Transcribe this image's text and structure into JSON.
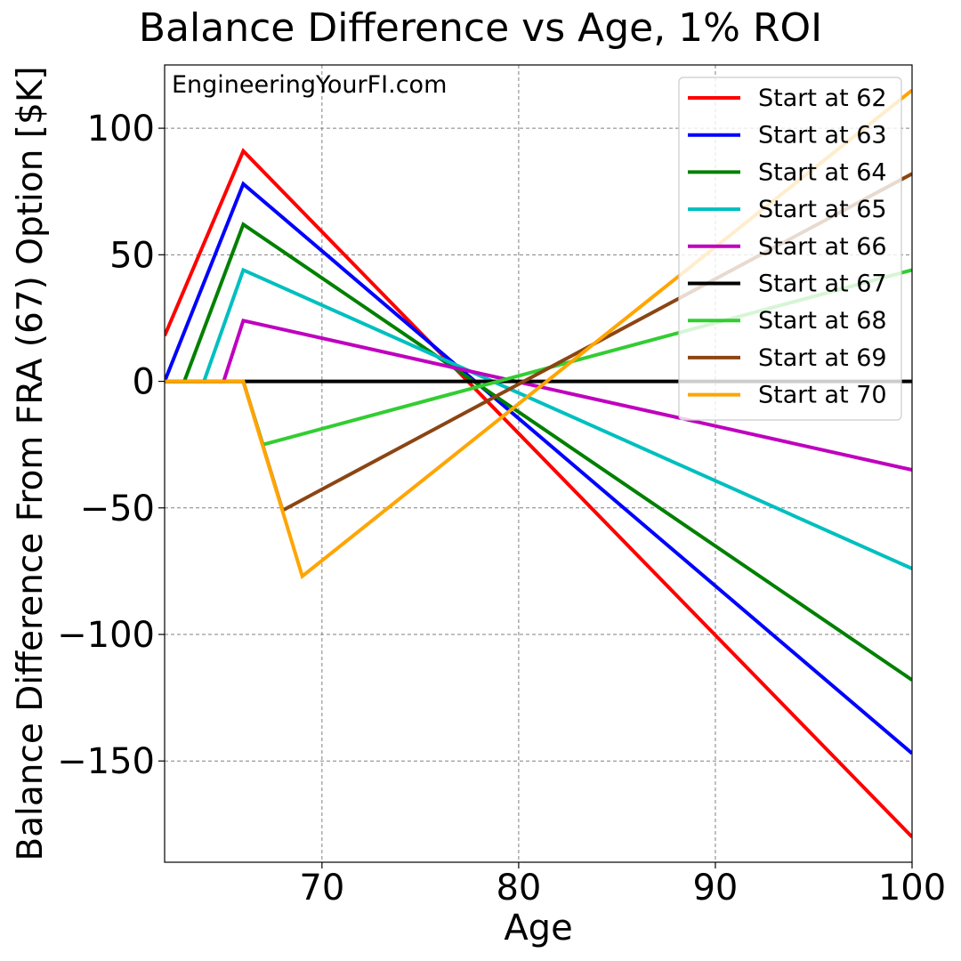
{
  "chart_data": {
    "type": "line",
    "title": "Balance Difference vs Age, 1% ROI",
    "xlabel": "Age",
    "ylabel": "Balance Difference From FRA (67) Option [$K]",
    "watermark": "EngineeringYourFI.com",
    "xlim": [
      62,
      100
    ],
    "ylim": [
      -190,
      125
    ],
    "xticks": [
      70,
      80,
      90,
      100
    ],
    "yticks": [
      100,
      50,
      0,
      -50,
      -100,
      -150
    ],
    "ytick_labels": [
      "100",
      "50",
      "0",
      "−50",
      "−100",
      "−150"
    ],
    "grid": true,
    "legend_position": "top-right",
    "series": [
      {
        "name": "Start at 62",
        "color": "#ff0000",
        "points": [
          [
            62,
            18
          ],
          [
            66,
            91
          ],
          [
            100,
            -180
          ]
        ]
      },
      {
        "name": "Start at 63",
        "color": "#0000ff",
        "points": [
          [
            62,
            0
          ],
          [
            66,
            78
          ],
          [
            100,
            -147
          ]
        ]
      },
      {
        "name": "Start at 64",
        "color": "#008000",
        "points": [
          [
            62,
            0
          ],
          [
            63,
            0
          ],
          [
            66,
            62
          ],
          [
            100,
            -118
          ]
        ]
      },
      {
        "name": "Start at 65",
        "color": "#00bfbf",
        "points": [
          [
            62,
            0
          ],
          [
            64,
            0
          ],
          [
            66,
            44
          ],
          [
            100,
            -74
          ]
        ]
      },
      {
        "name": "Start at 66",
        "color": "#bf00bf",
        "points": [
          [
            62,
            0
          ],
          [
            65,
            0
          ],
          [
            66,
            24
          ],
          [
            100,
            -35
          ]
        ]
      },
      {
        "name": "Start at 67",
        "color": "#000000",
        "points": [
          [
            62,
            0
          ],
          [
            100,
            0
          ]
        ]
      },
      {
        "name": "Start at 68",
        "color": "#32cd32",
        "points": [
          [
            62,
            0
          ],
          [
            66,
            0
          ],
          [
            67,
            -25
          ],
          [
            100,
            44
          ]
        ]
      },
      {
        "name": "Start at 69",
        "color": "#8b4513",
        "points": [
          [
            62,
            0
          ],
          [
            66,
            0
          ],
          [
            68,
            -51
          ],
          [
            100,
            82
          ]
        ]
      },
      {
        "name": "Start at 70",
        "color": "#ffa500",
        "points": [
          [
            62,
            0
          ],
          [
            66,
            0
          ],
          [
            69,
            -77
          ],
          [
            100,
            115
          ]
        ]
      }
    ]
  }
}
